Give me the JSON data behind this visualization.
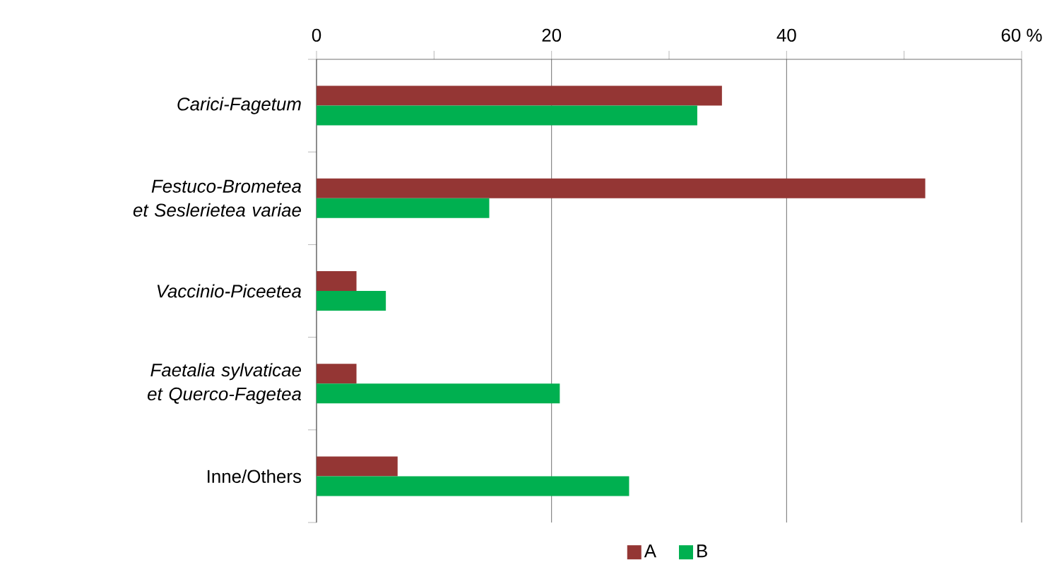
{
  "chart_data": {
    "type": "bar",
    "orientation": "horizontal",
    "categories": [
      "*Carici-Fagetum*",
      "*Festuco-Brometea et Seslerietea variae*",
      "*Vaccinio-Piceetea*",
      "*Faetalia sylvaticae et Querco-Fagetea*",
      "Inne/Others"
    ],
    "series": [
      {
        "name": "A",
        "color": "#943634",
        "values": [
          34.5,
          51.8,
          3.4,
          3.4,
          6.9
        ]
      },
      {
        "name": "B",
        "color": "#00b050",
        "values": [
          32.4,
          14.7,
          5.9,
          20.7,
          26.6
        ]
      }
    ],
    "xlim": [
      0,
      60
    ],
    "xticks": [
      0,
      {
        "value": 10,
        "label": null
      },
      20,
      {
        "value": 30,
        "label": null
      },
      40,
      {
        "value": 50,
        "label": null
      },
      {
        "value": 60,
        "label": "60 %"
      }
    ],
    "grid": "x",
    "legend": "bottom"
  }
}
